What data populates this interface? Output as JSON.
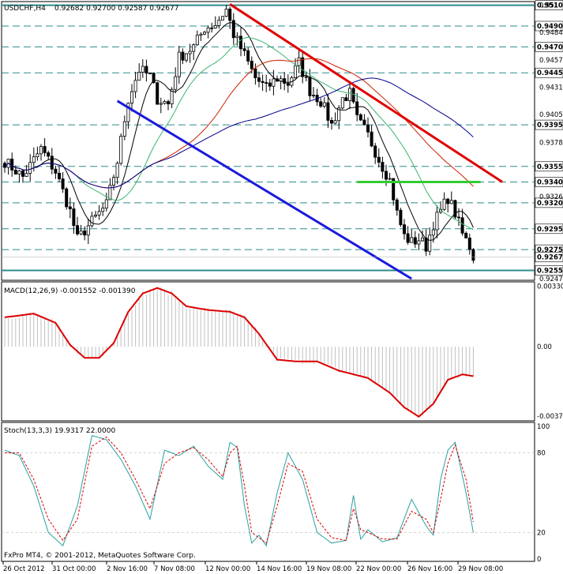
{
  "header": {
    "symbol": "USDCHF,H4",
    "ohlc": "0.92682 0.92700 0.92587 0.92677"
  },
  "colors": {
    "background": "#ffffff",
    "bull_candle": "#ffffff",
    "bear_candle": "#000000",
    "ma_fast": "#000000",
    "ma_teal": "#3cb371",
    "ma_red": "#cc2200",
    "ma_blue": "#00008b",
    "trend_red": "#e00000",
    "trend_blue": "#1a1adb",
    "support_green": "#33cc33",
    "macd_main": "#c0c0c0",
    "macd_signal": "#dd0000",
    "stoch_main": "#2aa0a0",
    "stoch_signal": "#dd0000"
  },
  "chart_data": [
    {
      "type": "candlestick",
      "panel": "price",
      "ylim": [
        0.9247,
        0.9512
      ],
      "price_scale_ticks": [
        0.951,
        0.9484,
        0.94575,
        0.9431,
        0.9405,
        0.9378,
        0.9326,
        0.9247
      ],
      "level_labels": [
        "0.95100",
        "0.94900",
        "0.94700",
        "0.94450",
        "0.93950",
        "0.93550",
        "0.93400",
        "0.93200",
        "0.92950",
        "0.92750",
        "0.92677",
        "0.92550"
      ],
      "levels": [
        {
          "price": 0.951,
          "label": "0.95100",
          "style": "solid",
          "color": "#2e8b8b"
        },
        {
          "price": 0.949,
          "label": "0.94900",
          "style": "dashed",
          "color": "#2e8b8b"
        },
        {
          "price": 0.947,
          "label": "0.94700",
          "style": "dashed",
          "color": "#2e8b8b"
        },
        {
          "price": 0.9445,
          "label": "0.94450",
          "style": "dashed",
          "color": "#2e8b8b"
        },
        {
          "price": 0.9395,
          "label": "0.93950",
          "style": "dashed",
          "color": "#2e8b8b"
        },
        {
          "price": 0.9355,
          "label": "0.93550",
          "style": "dashed",
          "color": "#2e8b8b"
        },
        {
          "price": 0.934,
          "label": "0.93400",
          "style": "dashed",
          "color": "#2e8b8b"
        },
        {
          "price": 0.932,
          "label": "0.93200",
          "style": "dashed",
          "color": "#2e8b8b"
        },
        {
          "price": 0.9295,
          "label": "0.92950",
          "style": "dashed",
          "color": "#2e8b8b"
        },
        {
          "price": 0.9275,
          "label": "0.92750",
          "style": "dashed",
          "color": "#2e8b8b"
        },
        {
          "price": 0.9255,
          "label": "0.92550",
          "style": "solid",
          "color": "#2e8b8b"
        }
      ],
      "current_price": 0.92677,
      "candles_count": 130,
      "anchors": [
        [
          0,
          0.936
        ],
        [
          5,
          0.9345
        ],
        [
          10,
          0.9372
        ],
        [
          14,
          0.935
        ],
        [
          18,
          0.9312
        ],
        [
          20,
          0.9285
        ],
        [
          24,
          0.9302
        ],
        [
          28,
          0.9318
        ],
        [
          31,
          0.936
        ],
        [
          34,
          0.942
        ],
        [
          37,
          0.9448
        ],
        [
          40,
          0.9442
        ],
        [
          42,
          0.942
        ],
        [
          45,
          0.9415
        ],
        [
          48,
          0.946
        ],
        [
          52,
          0.947
        ],
        [
          55,
          0.9488
        ],
        [
          58,
          0.9492
        ],
        [
          61,
          0.9506
        ],
        [
          63,
          0.9482
        ],
        [
          66,
          0.9462
        ],
        [
          69,
          0.944
        ],
        [
          72,
          0.943
        ],
        [
          75,
          0.944
        ],
        [
          78,
          0.9435
        ],
        [
          81,
          0.9455
        ],
        [
          84,
          0.9428
        ],
        [
          87,
          0.9418
        ],
        [
          90,
          0.9395
        ],
        [
          93,
          0.942
        ],
        [
          95,
          0.9425
        ],
        [
          97,
          0.94
        ],
        [
          100,
          0.9385
        ],
        [
          103,
          0.9362
        ],
        [
          106,
          0.9342
        ],
        [
          108,
          0.931
        ],
        [
          110,
          0.9288
        ],
        [
          112,
          0.9282
        ],
        [
          114,
          0.9285
        ],
        [
          116,
          0.9278
        ],
        [
          118,
          0.93
        ],
        [
          120,
          0.9312
        ],
        [
          122,
          0.9325
        ],
        [
          124,
          0.931
        ],
        [
          126,
          0.929
        ],
        [
          128,
          0.9278
        ],
        [
          129,
          0.9268
        ]
      ],
      "lines": [
        {
          "name": "",
          "from": [
            0.9511,
            62
          ],
          "to": [
            0.934,
            137
          ],
          "color": "#e00000"
        },
        {
          "name": "",
          "from": [
            0.9418,
            31
          ],
          "to": [
            0.9247,
            112
          ],
          "color": "#1a1adb"
        },
        {
          "name": "",
          "from": [
            0.934,
            97
          ],
          "to": [
            0.934,
            131
          ],
          "color": "#33cc33"
        }
      ]
    },
    {
      "type": "line",
      "panel": "macd",
      "title": "MACD(12,26,9) -0.001552 -0.001390",
      "ylim": [
        -0.0039,
        0.0034
      ],
      "ticks": [
        "0.00330",
        "0.00",
        "-0.00377"
      ],
      "signal_anchors": [
        [
          0,
          0.0016
        ],
        [
          8,
          0.0018
        ],
        [
          14,
          0.0013
        ],
        [
          18,
          0.0001
        ],
        [
          22,
          -0.0006
        ],
        [
          26,
          -0.0006
        ],
        [
          30,
          0.0002
        ],
        [
          34,
          0.0019
        ],
        [
          38,
          0.0029
        ],
        [
          42,
          0.0032
        ],
        [
          46,
          0.0029
        ],
        [
          50,
          0.0022
        ],
        [
          56,
          0.002
        ],
        [
          62,
          0.0019
        ],
        [
          66,
          0.0016
        ],
        [
          70,
          0.0007
        ],
        [
          75,
          -0.0007
        ],
        [
          80,
          -0.0008
        ],
        [
          86,
          -0.0008
        ],
        [
          92,
          -0.0013
        ],
        [
          100,
          -0.0017
        ],
        [
          106,
          -0.0025
        ],
        [
          110,
          -0.0033
        ],
        [
          114,
          -0.0038
        ],
        [
          118,
          -0.0031
        ],
        [
          122,
          -0.0018
        ],
        [
          126,
          -0.0015
        ],
        [
          129,
          -0.0016
        ]
      ],
      "histogram_note": "main line drawn as grey histogram"
    },
    {
      "type": "line",
      "panel": "stochastic",
      "title": "Stoch(13,3,3) 19.9317 22.0000",
      "ylim": [
        0,
        100
      ],
      "ticks": [
        "100",
        "80",
        "20",
        "0"
      ],
      "k_anchors": [
        [
          0,
          82
        ],
        [
          4,
          78
        ],
        [
          8,
          55
        ],
        [
          12,
          20
        ],
        [
          16,
          10
        ],
        [
          20,
          40
        ],
        [
          24,
          93
        ],
        [
          28,
          90
        ],
        [
          32,
          75
        ],
        [
          36,
          55
        ],
        [
          40,
          30
        ],
        [
          44,
          82
        ],
        [
          48,
          78
        ],
        [
          52,
          85
        ],
        [
          56,
          70
        ],
        [
          60,
          60
        ],
        [
          62,
          88
        ],
        [
          64,
          84
        ],
        [
          66,
          40
        ],
        [
          68,
          12
        ],
        [
          70,
          18
        ],
        [
          72,
          10
        ],
        [
          75,
          50
        ],
        [
          78,
          80
        ],
        [
          82,
          60
        ],
        [
          86,
          20
        ],
        [
          90,
          12
        ],
        [
          94,
          14
        ],
        [
          96,
          48
        ],
        [
          98,
          15
        ],
        [
          100,
          22
        ],
        [
          104,
          13
        ],
        [
          108,
          16
        ],
        [
          112,
          45
        ],
        [
          116,
          25
        ],
        [
          118,
          18
        ],
        [
          120,
          60
        ],
        [
          122,
          82
        ],
        [
          124,
          88
        ],
        [
          127,
          50
        ],
        [
          129,
          20
        ],
        [
          132,
          22
        ]
      ],
      "d_anchors": [
        [
          0,
          80
        ],
        [
          4,
          80
        ],
        [
          8,
          60
        ],
        [
          12,
          30
        ],
        [
          16,
          14
        ],
        [
          20,
          30
        ],
        [
          24,
          85
        ],
        [
          28,
          92
        ],
        [
          32,
          80
        ],
        [
          36,
          60
        ],
        [
          40,
          38
        ],
        [
          44,
          72
        ],
        [
          48,
          80
        ],
        [
          52,
          84
        ],
        [
          56,
          75
        ],
        [
          60,
          62
        ],
        [
          62,
          80
        ],
        [
          64,
          85
        ],
        [
          66,
          55
        ],
        [
          68,
          20
        ],
        [
          70,
          16
        ],
        [
          72,
          12
        ],
        [
          75,
          40
        ],
        [
          78,
          72
        ],
        [
          82,
          66
        ],
        [
          86,
          30
        ],
        [
          90,
          16
        ],
        [
          94,
          14
        ],
        [
          96,
          38
        ],
        [
          98,
          22
        ],
        [
          100,
          20
        ],
        [
          104,
          15
        ],
        [
          108,
          15
        ],
        [
          112,
          36
        ],
        [
          116,
          30
        ],
        [
          118,
          20
        ],
        [
          120,
          45
        ],
        [
          122,
          72
        ],
        [
          124,
          86
        ],
        [
          127,
          60
        ],
        [
          129,
          28
        ],
        [
          132,
          22
        ]
      ]
    }
  ],
  "time_axis": [
    "26 Oct 2012",
    "31 Oct 00:00",
    "2 Nov 16:00",
    "7 Nov 08:00",
    "12 Nov 00:00",
    "14 Nov 16:00",
    "19 Nov 08:00",
    "22 Nov 00:00",
    "26 Nov 16:00",
    "29 Nov 08:00"
  ],
  "copyright": "FxPro MT4, © 2001-2012, MetaQuotes Software Corp."
}
